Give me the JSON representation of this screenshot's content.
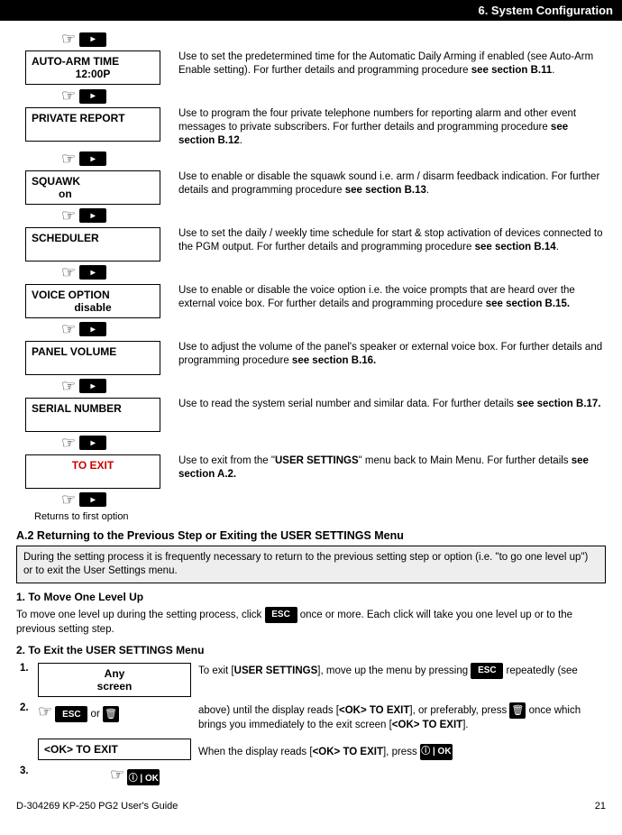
{
  "header": {
    "chapter": "6. System Configuration"
  },
  "menu": [
    {
      "label1": "AUTO-ARM TIME",
      "label2": "12:00P",
      "align2": "center",
      "desc_pre": "Use to set the predetermined time for the Automatic Daily Arming if enabled (see Auto-Arm Enable setting). For further details and programming procedure ",
      "desc_bold": "see section B.11",
      "desc_post": "."
    },
    {
      "label1": "PRIVATE REPORT",
      "label2": "",
      "desc_pre": "Use to program the four private telephone numbers for reporting alarm and other event messages to private subscribers. For further details and programming procedure ",
      "desc_bold": "see section B.12",
      "desc_post": "."
    },
    {
      "label1": "SQUAWK",
      "label2": "on",
      "align2": "left-indent",
      "desc_pre": "Use to enable or disable the squawk sound i.e. arm / disarm feedback indication. For further details and programming procedure ",
      "desc_bold": "see section B.13",
      "desc_post": "."
    },
    {
      "label1": "SCHEDULER",
      "label2": "",
      "desc_pre": "Use to set the daily / weekly time schedule for start & stop activation of devices connected to the PGM output. For further details and programming procedure ",
      "desc_bold": "see section B.14",
      "desc_post": "."
    },
    {
      "label1": "VOICE OPTION",
      "label2": "disable",
      "align2": "center",
      "desc_pre": "Use to enable or disable the voice option i.e. the voice prompts that are heard over the external voice box. For further details and programming procedure ",
      "desc_bold": "see section B.15.",
      "desc_post": ""
    },
    {
      "label1": "PANEL VOLUME",
      "label2": "",
      "desc_pre": "Use to adjust the volume of the panel's speaker or external voice box. For further details and programming procedure ",
      "desc_bold": "see section B.16.",
      "desc_post": ""
    },
    {
      "label1": "SERIAL NUMBER",
      "label2": "",
      "desc_pre": "Use to read the system serial number and similar data. For further details ",
      "desc_bold": "see section B.17.",
      "desc_post": ""
    },
    {
      "label1": "<OK> TO EXIT",
      "label2": "",
      "red": true,
      "desc_pre": "Use to exit from the \"",
      "desc_bold": "USER SETTINGS",
      "desc_mid": "\" menu back to Main Menu. For further details ",
      "desc_bold2": "see section A.2.",
      "desc_post": ""
    }
  ],
  "returns_text": "Returns to first option",
  "sectA2": {
    "title": "A.2 Returning to the Previous Step or Exiting the USER SETTINGS Menu",
    "note": "During the setting process it is frequently necessary to return to the previous setting step or option (i.e. \"to go one level up\") or to exit the User Settings menu.",
    "sub1": "1. To Move One Level Up",
    "p1a": "To move one level up during the setting process, click ",
    "p1b": " once or more. Each click will take you one level up or to the previous setting step.",
    "sub2": "2. To Exit the USER SETTINGS Menu",
    "step1_box": "Any\nscreen",
    "step1_desc_a": "To exit [",
    "step1_desc_b": "USER SETTINGS",
    "step1_desc_c": "], move up the menu by pressing ",
    "step1_desc_d": " repeatedly (see",
    "step2_or": "or",
    "step2_desc_a": "above) until the display reads [",
    "step2_desc_b": "<OK> TO EXIT",
    "step2_desc_c": "], or preferably, press ",
    "step2_desc_d": " once which brings you immediately to the exit screen [",
    "step2_desc_e": "<OK> TO EXIT",
    "step2_desc_f": "].",
    "ok_exit_box": "<OK> TO EXIT",
    "step3_desc_a": "When the display reads [",
    "step3_desc_b": "<OK> TO EXIT",
    "step3_desc_c": "], press "
  },
  "keys": {
    "esc": "ESC",
    "ok": "ⓘ | OK",
    "next": "▸"
  },
  "footer": {
    "doc": "D-304269 KP-250 PG2 User's Guide",
    "page": "21"
  }
}
